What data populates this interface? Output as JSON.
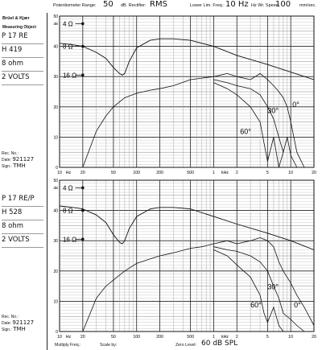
{
  "header": {
    "pot_range_label": "Potentiometer Range:",
    "pot_range_value": "50",
    "db_rectifier_label": "dB. Rectifier:",
    "db_rectifier_value": "RMS",
    "lower_lim_label": "Lower Lim. Freq.:",
    "lower_lim_value": "10 Hz",
    "wr_speed_label": "Hz Wr. Speed:",
    "wr_speed_value": "100",
    "wr_speed_unit": "mm/sec."
  },
  "sidebar": {
    "brand": "Brüel & Kjær",
    "measuring_object_label": "Measuring Object",
    "rec_no_label": "Rec. No.:",
    "date_label": "Date:",
    "sign_label": "Sign.:"
  },
  "panels": [
    {
      "spec": [
        "P 17 RE",
        "H 419",
        "8 ohm",
        "2 VOLTS"
      ],
      "date": "921127",
      "sign": "TMH"
    },
    {
      "spec": [
        "P 17 RE/P",
        "H 528",
        "8 ohm",
        "2 VOLTS"
      ],
      "date": "921127",
      "sign": "TMH"
    }
  ],
  "footer": {
    "multiply_label": "Multiply Freq.:",
    "scale_label": "Scale by:",
    "zero_level_label": "Zero Level:",
    "zero_level_value": "60  dB  SPL"
  },
  "chart_data": [
    {
      "type": "line",
      "xscale": "log",
      "xlim": [
        10,
        20000
      ],
      "ylim": [
        0,
        50
      ],
      "ylabel": "dB",
      "x_tick_labels": [
        "10",
        "Hz",
        "20",
        "50",
        "100",
        "200",
        "500",
        "1",
        "kHz",
        "2",
        "5",
        "10",
        "20"
      ],
      "y_tick_labels": [
        "50",
        "40",
        "30",
        "20",
        "10",
        "0"
      ],
      "impedance_markers": [
        "4 Ω",
        "8 Ω",
        "16 Ω"
      ],
      "series": [
        {
          "name": "",
          "kind": "impedance",
          "x": [
            10,
            15,
            20,
            30,
            40,
            50,
            60,
            65,
            70,
            80,
            100,
            150,
            200,
            300,
            500,
            1000,
            2000,
            5000,
            10000,
            20000
          ],
          "y": [
            41,
            40.5,
            40,
            38,
            36,
            33,
            31,
            30.5,
            31,
            35,
            39.5,
            42,
            42.5,
            42.5,
            42,
            40,
            37,
            34,
            31.5,
            29
          ]
        },
        {
          "name": "0°",
          "kind": "spl",
          "x": [
            20,
            30,
            40,
            50,
            70,
            100,
            150,
            200,
            300,
            500,
            700,
            1000,
            1500,
            2000,
            3000,
            4000,
            5000,
            6000,
            7000,
            8000,
            9000,
            10000,
            12000,
            15000,
            20000
          ],
          "y": [
            0,
            12,
            17,
            20,
            23,
            24.5,
            25.5,
            26,
            27,
            29,
            29.5,
            30,
            31,
            30,
            29,
            31,
            29,
            27,
            25,
            23,
            20,
            15,
            5,
            0,
            0
          ]
        },
        {
          "name": "30°",
          "kind": "spl",
          "x": [
            1000,
            1500,
            2000,
            3000,
            4000,
            5000,
            6000,
            7000,
            8000,
            9000,
            10000,
            12000
          ],
          "y": [
            29,
            28,
            27,
            26,
            24,
            20,
            16,
            10,
            5,
            10,
            4,
            0
          ]
        },
        {
          "name": "60°",
          "kind": "spl",
          "x": [
            1000,
            1500,
            2000,
            3000,
            4000,
            4500,
            5000,
            6000,
            7000,
            8000
          ],
          "y": [
            28,
            26,
            24,
            20,
            15,
            8,
            2,
            10,
            0,
            5
          ]
        }
      ],
      "annotations": [
        "0°",
        "30°",
        "60°"
      ]
    },
    {
      "type": "line",
      "xscale": "log",
      "xlim": [
        10,
        20000
      ],
      "ylim": [
        0,
        50
      ],
      "ylabel": "dB",
      "x_tick_labels": [
        "10",
        "Hz",
        "20",
        "50",
        "100",
        "200",
        "500",
        "1",
        "kHz",
        "2",
        "5",
        "10",
        "20"
      ],
      "y_tick_labels": [
        "50",
        "40",
        "30",
        "20",
        "10",
        "0"
      ],
      "impedance_markers": [
        "4 Ω",
        "8 Ω",
        "16 Ω"
      ],
      "series": [
        {
          "name": "",
          "kind": "impedance",
          "x": [
            10,
            15,
            20,
            30,
            40,
            50,
            60,
            65,
            70,
            80,
            100,
            150,
            200,
            300,
            500,
            1000,
            2000,
            5000,
            10000,
            20000
          ],
          "y": [
            41.5,
            41,
            40.5,
            38.5,
            36,
            32,
            29.5,
            29,
            30,
            34,
            38,
            40.5,
            41,
            41,
            40.5,
            38,
            35.5,
            32.5,
            30,
            27
          ]
        },
        {
          "name": "0°",
          "kind": "spl",
          "x": [
            20,
            30,
            40,
            50,
            70,
            100,
            150,
            200,
            300,
            500,
            700,
            1000,
            1500,
            2000,
            3000,
            4000,
            5000,
            6000,
            7000,
            8000,
            10000,
            12000,
            15000,
            20000
          ],
          "y": [
            0,
            11,
            15,
            17,
            20,
            22.5,
            24,
            25,
            26,
            27.5,
            28,
            29,
            30,
            29,
            30,
            31,
            30,
            28,
            23,
            20,
            16,
            12,
            8,
            2
          ]
        },
        {
          "name": "30°",
          "kind": "spl",
          "x": [
            1000,
            1500,
            2000,
            3000,
            4000,
            5000,
            6000,
            7000,
            8000,
            10000,
            12000,
            15000
          ],
          "y": [
            28,
            27,
            26.5,
            25,
            23,
            20,
            15,
            11,
            6,
            4,
            2,
            0
          ]
        },
        {
          "name": "60°",
          "kind": "spl",
          "x": [
            1000,
            1500,
            2000,
            3000,
            4000,
            4500,
            5000,
            6000,
            7000,
            8000
          ],
          "y": [
            27,
            25,
            22,
            18,
            12,
            6,
            3,
            8,
            2,
            0
          ]
        }
      ],
      "annotations": [
        "30°",
        "60°",
        "0°"
      ]
    }
  ]
}
